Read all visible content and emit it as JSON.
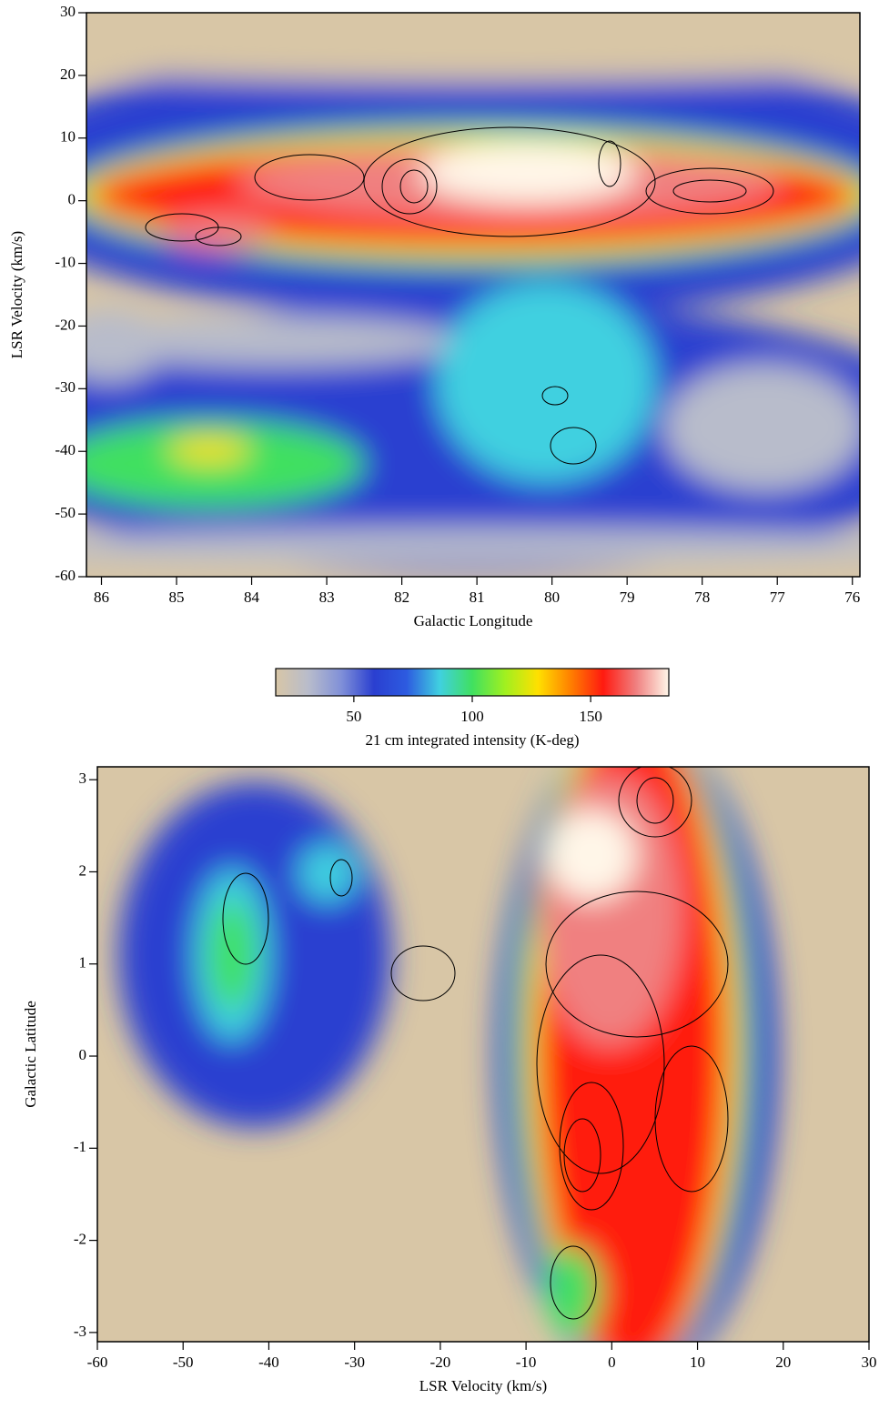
{
  "chart_data": [
    {
      "type": "heatmap",
      "xlabel": "Galactic Longitude",
      "ylabel": "LSR Velocity (km/s)",
      "xlim": [
        86.2,
        75.9
      ],
      "ylim": [
        -60,
        30
      ],
      "xticks": [
        86,
        85,
        84,
        83,
        82,
        81,
        80,
        79,
        78,
        77,
        76
      ],
      "yticks": [
        -60,
        -50,
        -40,
        -30,
        -20,
        -10,
        0,
        10,
        20,
        30
      ]
    },
    {
      "type": "colorbar",
      "label": "21 cm integrated intensity (K-deg)",
      "xlim": [
        17,
        183
      ],
      "xticks": [
        50,
        100,
        150
      ],
      "colors": [
        "#d8c6a6",
        "#b8bccb",
        "#8090d8",
        "#2a3fd0",
        "#2d5be0",
        "#40d0e0",
        "#40e060",
        "#a0f020",
        "#ffe000",
        "#ff8000",
        "#ff1a10",
        "#f08080",
        "#fff6e8"
      ]
    },
    {
      "type": "heatmap",
      "xlabel": "LSR Velocity (km/s)",
      "ylabel": "Galactic Latitude",
      "xlim": [
        -60,
        30
      ],
      "ylim": [
        -3.1,
        3.14
      ],
      "xticks": [
        -60,
        -50,
        -40,
        -30,
        -20,
        -10,
        0,
        10,
        20,
        30
      ],
      "yticks": [
        -3,
        -2,
        -1,
        0,
        1,
        2,
        3
      ]
    }
  ]
}
